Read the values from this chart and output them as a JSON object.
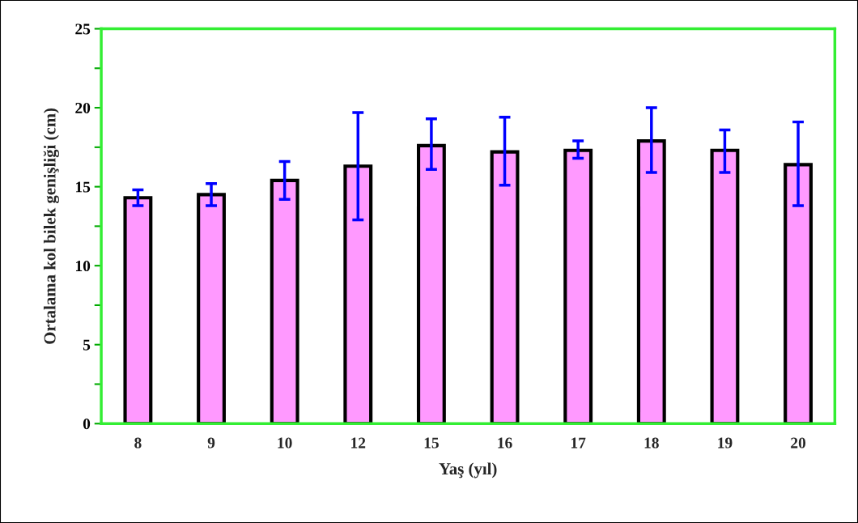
{
  "chart_data": {
    "type": "bar",
    "xlabel": "Yaş (yıl)",
    "ylabel": "Ortalama kol bilek genişliği (cm)",
    "categories": [
      "8",
      "9",
      "10",
      "12",
      "15",
      "16",
      "17",
      "18",
      "19",
      "20"
    ],
    "values": [
      14.3,
      14.5,
      15.4,
      16.3,
      17.6,
      17.2,
      17.3,
      17.9,
      17.3,
      16.4
    ],
    "errors": [
      [
        13.8,
        14.8
      ],
      [
        13.8,
        15.2
      ],
      [
        14.2,
        16.6
      ],
      [
        12.9,
        19.7
      ],
      [
        16.1,
        19.3
      ],
      [
        15.1,
        19.4
      ],
      [
        16.8,
        17.9
      ],
      [
        15.9,
        20.0
      ],
      [
        15.9,
        18.6
      ],
      [
        13.8,
        19.1
      ]
    ],
    "color": "#ff99ff",
    "ylim": [
      0,
      25
    ],
    "yticks": [
      0,
      {
        "value": 2.5,
        "label": null
      },
      5,
      {
        "value": 7.5,
        "label": null
      },
      10,
      {
        "value": 12.5,
        "label": null
      },
      15,
      {
        "value": 17.5,
        "label": null
      },
      20,
      {
        "value": 22.5,
        "label": null
      },
      25
    ],
    "grid": false,
    "legend": false
  }
}
